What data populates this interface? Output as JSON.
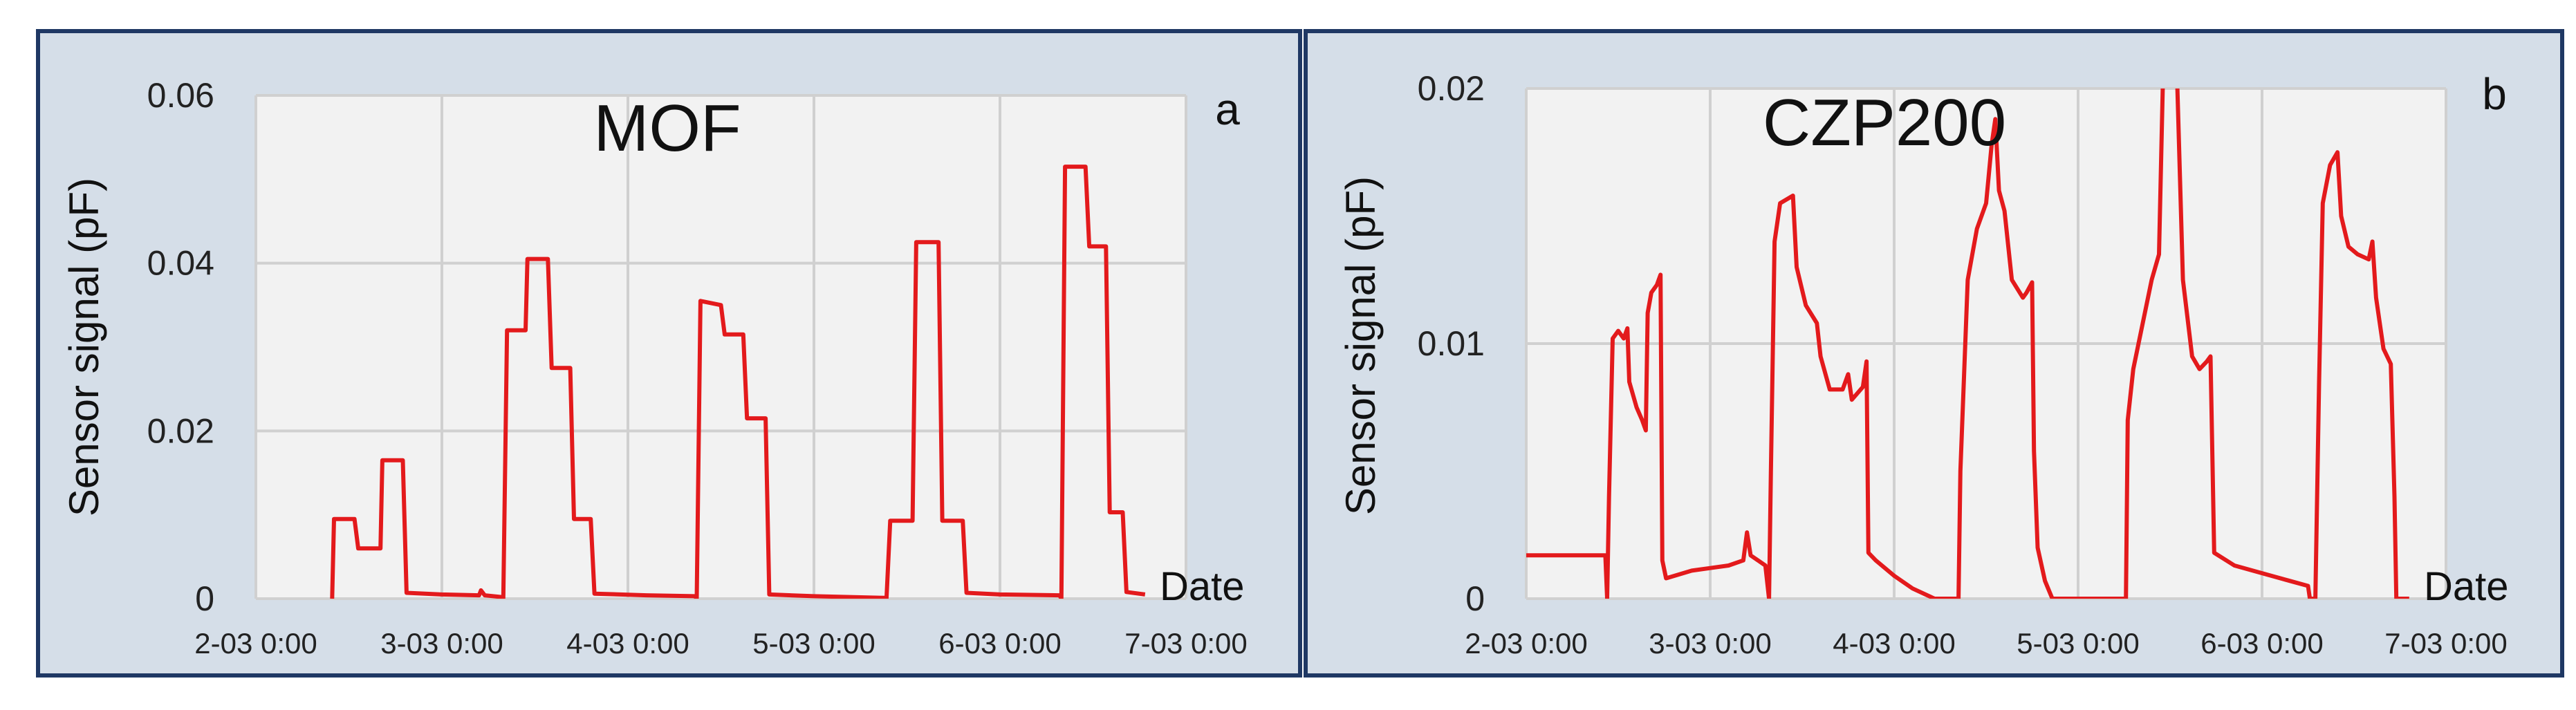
{
  "colors": {
    "panel_bg": "#d5dee8",
    "panel_border": "#1f3864",
    "plot_bg": "#f2f2f2",
    "grid": "#d0d0d0",
    "series": "#e31a1c"
  },
  "chart_data": [
    {
      "panel": "a",
      "type": "line",
      "title": "MOF",
      "ylabel": "Sensor signal (pF)",
      "xlabel": "Date",
      "xlim": [
        0,
        5
      ],
      "ylim": [
        0,
        0.06
      ],
      "x_ticks": [
        "2-03 0:00",
        "3-03 0:00",
        "4-03 0:00",
        "5-03 0:00",
        "6-03 0:00",
        "7-03 0:00"
      ],
      "y_ticks": [
        "0",
        "0.02",
        "0.04",
        "0.06"
      ],
      "y_tick_values": [
        0,
        0.02,
        0.04,
        0.06
      ],
      "grid": true,
      "series": [
        {
          "points": [
            [
              0.41,
              0.0
            ],
            [
              0.42,
              0.0095
            ],
            [
              0.53,
              0.0095
            ],
            [
              0.55,
              0.006
            ],
            [
              0.67,
              0.006
            ],
            [
              0.68,
              0.0165
            ],
            [
              0.79,
              0.0165
            ],
            [
              0.81,
              0.0007
            ],
            [
              1.0,
              0.0005
            ],
            [
              1.2,
              0.0004
            ],
            [
              1.21,
              0.001
            ],
            [
              1.23,
              0.0004
            ],
            [
              1.32,
              0.0002
            ],
            [
              1.33,
              0.0
            ],
            [
              1.35,
              0.032
            ],
            [
              1.45,
              0.032
            ],
            [
              1.46,
              0.0405
            ],
            [
              1.57,
              0.0405
            ],
            [
              1.59,
              0.0275
            ],
            [
              1.69,
              0.0275
            ],
            [
              1.71,
              0.0095
            ],
            [
              1.8,
              0.0095
            ],
            [
              1.82,
              0.0006
            ],
            [
              2.1,
              0.0004
            ],
            [
              2.36,
              0.0003
            ],
            [
              2.37,
              0.0
            ],
            [
              2.39,
              0.0355
            ],
            [
              2.5,
              0.035
            ],
            [
              2.52,
              0.0315
            ],
            [
              2.62,
              0.0315
            ],
            [
              2.64,
              0.0215
            ],
            [
              2.74,
              0.0215
            ],
            [
              2.76,
              0.0005
            ],
            [
              3.0,
              0.0003
            ],
            [
              3.38,
              0.0001
            ],
            [
              3.39,
              0.0
            ],
            [
              3.41,
              0.0093
            ],
            [
              3.53,
              0.0093
            ],
            [
              3.55,
              0.0425
            ],
            [
              3.67,
              0.0425
            ],
            [
              3.69,
              0.0093
            ],
            [
              3.8,
              0.0093
            ],
            [
              3.82,
              0.0007
            ],
            [
              4.0,
              0.0005
            ],
            [
              4.32,
              0.0004
            ],
            [
              4.33,
              0.0
            ],
            [
              4.35,
              0.0515
            ],
            [
              4.46,
              0.0515
            ],
            [
              4.48,
              0.042
            ],
            [
              4.57,
              0.042
            ],
            [
              4.59,
              0.0103
            ],
            [
              4.66,
              0.0103
            ],
            [
              4.68,
              0.0008
            ],
            [
              4.78,
              0.0005
            ]
          ]
        }
      ]
    },
    {
      "panel": "b",
      "type": "line",
      "title": "CZP200",
      "ylabel": "Sensor signal (pF)",
      "xlabel": "Date",
      "xlim": [
        0,
        5
      ],
      "ylim": [
        0,
        0.02
      ],
      "x_ticks": [
        "2-03 0:00",
        "3-03 0:00",
        "4-03 0:00",
        "5-03 0:00",
        "6-03 0:00",
        "7-03 0:00"
      ],
      "y_ticks": [
        "0",
        "0.01",
        "0.02"
      ],
      "y_tick_values": [
        0,
        0.01,
        0.02
      ],
      "grid": true,
      "series": [
        {
          "points": [
            [
              0.0,
              0.0017
            ],
            [
              0.43,
              0.0017
            ],
            [
              0.44,
              0.0
            ],
            [
              0.45,
              0.004
            ],
            [
              0.47,
              0.0102
            ],
            [
              0.5,
              0.0105
            ],
            [
              0.53,
              0.0102
            ],
            [
              0.55,
              0.0106
            ],
            [
              0.56,
              0.0085
            ],
            [
              0.6,
              0.0075
            ],
            [
              0.63,
              0.007
            ],
            [
              0.65,
              0.0066
            ],
            [
              0.66,
              0.0112
            ],
            [
              0.68,
              0.012
            ],
            [
              0.71,
              0.0123
            ],
            [
              0.73,
              0.0127
            ],
            [
              0.74,
              0.0015
            ],
            [
              0.76,
              0.0008
            ],
            [
              0.9,
              0.0011
            ],
            [
              1.0,
              0.0012
            ],
            [
              1.1,
              0.0013
            ],
            [
              1.18,
              0.0015
            ],
            [
              1.2,
              0.0026
            ],
            [
              1.22,
              0.0017
            ],
            [
              1.3,
              0.0013
            ],
            [
              1.32,
              0.0
            ],
            [
              1.33,
              0.005
            ],
            [
              1.35,
              0.014
            ],
            [
              1.38,
              0.0155
            ],
            [
              1.45,
              0.0158
            ],
            [
              1.47,
              0.013
            ],
            [
              1.52,
              0.0115
            ],
            [
              1.58,
              0.0108
            ],
            [
              1.6,
              0.0095
            ],
            [
              1.65,
              0.0082
            ],
            [
              1.72,
              0.0082
            ],
            [
              1.75,
              0.0088
            ],
            [
              1.77,
              0.0078
            ],
            [
              1.83,
              0.0083
            ],
            [
              1.85,
              0.0093
            ],
            [
              1.86,
              0.0018
            ],
            [
              1.9,
              0.0015
            ],
            [
              2.0,
              0.0009
            ],
            [
              2.1,
              0.0004
            ],
            [
              2.22,
              0.0
            ],
            [
              2.35,
              0.0
            ],
            [
              2.36,
              0.005
            ],
            [
              2.4,
              0.0125
            ],
            [
              2.45,
              0.0145
            ],
            [
              2.5,
              0.0155
            ],
            [
              2.53,
              0.0178
            ],
            [
              2.55,
              0.0188
            ],
            [
              2.57,
              0.016
            ],
            [
              2.6,
              0.0152
            ],
            [
              2.64,
              0.0125
            ],
            [
              2.7,
              0.0118
            ],
            [
              2.72,
              0.012
            ],
            [
              2.75,
              0.0124
            ],
            [
              2.76,
              0.0058
            ],
            [
              2.78,
              0.002
            ],
            [
              2.82,
              0.0007
            ],
            [
              2.86,
              0.0
            ],
            [
              3.0,
              0.0
            ],
            [
              3.26,
              0.0
            ],
            [
              3.27,
              0.007
            ],
            [
              3.3,
              0.009
            ],
            [
              3.4,
              0.0125
            ],
            [
              3.44,
              0.0135
            ],
            [
              3.46,
              0.02
            ],
            [
              3.5,
              0.021
            ],
            [
              3.52,
              0.021
            ],
            [
              3.54,
              0.02
            ],
            [
              3.57,
              0.0125
            ],
            [
              3.62,
              0.0095
            ],
            [
              3.66,
              0.009
            ],
            [
              3.7,
              0.0093
            ],
            [
              3.72,
              0.0095
            ],
            [
              3.74,
              0.0018
            ],
            [
              3.85,
              0.0013
            ],
            [
              4.0,
              0.001
            ],
            [
              4.15,
              0.0007
            ],
            [
              4.25,
              0.0005
            ],
            [
              4.26,
              0.0
            ],
            [
              4.29,
              0.0
            ],
            [
              4.31,
              0.0085
            ],
            [
              4.33,
              0.0155
            ],
            [
              4.37,
              0.017
            ],
            [
              4.41,
              0.0175
            ],
            [
              4.43,
              0.015
            ],
            [
              4.47,
              0.0138
            ],
            [
              4.52,
              0.0135
            ],
            [
              4.58,
              0.0133
            ],
            [
              4.6,
              0.014
            ],
            [
              4.62,
              0.0118
            ],
            [
              4.66,
              0.0098
            ],
            [
              4.7,
              0.0092
            ],
            [
              4.72,
              0.004
            ],
            [
              4.73,
              0.0
            ],
            [
              4.8,
              0.0
            ]
          ]
        }
      ]
    }
  ]
}
